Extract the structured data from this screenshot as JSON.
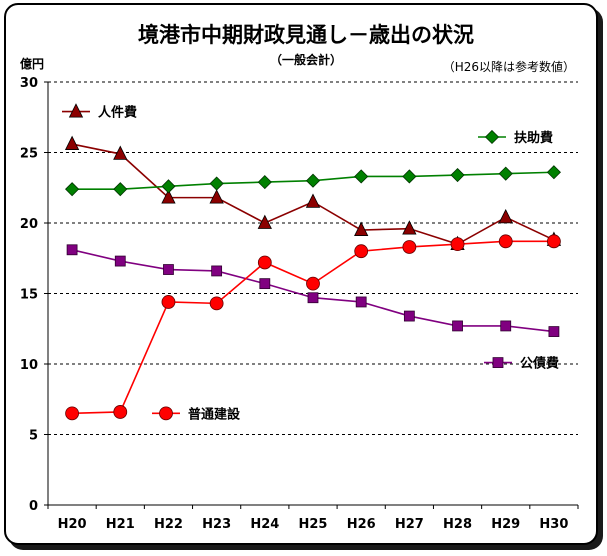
{
  "chart_data": {
    "type": "line",
    "title": "境港市中期財政見通し－歳出の状況",
    "subtitle": "（一般会計）",
    "note": "（H26以降は参考数値）",
    "ylabel": "億円",
    "xlabel": "",
    "ylim": [
      0,
      30
    ],
    "yticks": [
      0,
      5,
      10,
      15,
      20,
      25,
      30
    ],
    "grid": "horizontal-dashed",
    "categories": [
      "H20",
      "H21",
      "H22",
      "H23",
      "H24",
      "H25",
      "H26",
      "H27",
      "H28",
      "H29",
      "H30"
    ],
    "series": [
      {
        "name": "人件費",
        "color": "#8b0000",
        "marker": "triangle",
        "values": [
          25.6,
          24.9,
          21.8,
          21.8,
          20.0,
          21.5,
          19.5,
          19.6,
          18.5,
          20.4,
          18.8
        ]
      },
      {
        "name": "扶助費",
        "color": "#008000",
        "marker": "diamond",
        "values": [
          22.4,
          22.4,
          22.6,
          22.8,
          22.9,
          23.0,
          23.3,
          23.3,
          23.4,
          23.5,
          23.6
        ]
      },
      {
        "name": "公債費",
        "color": "#800080",
        "marker": "square",
        "values": [
          18.1,
          17.3,
          16.7,
          16.6,
          15.7,
          14.7,
          14.4,
          13.4,
          12.7,
          12.7,
          12.3
        ]
      },
      {
        "name": "普通建設",
        "color": "#ff0000",
        "marker": "circle",
        "values": [
          6.5,
          6.6,
          14.4,
          14.3,
          17.2,
          15.7,
          18.0,
          18.3,
          18.5,
          18.7,
          18.7
        ]
      }
    ]
  }
}
